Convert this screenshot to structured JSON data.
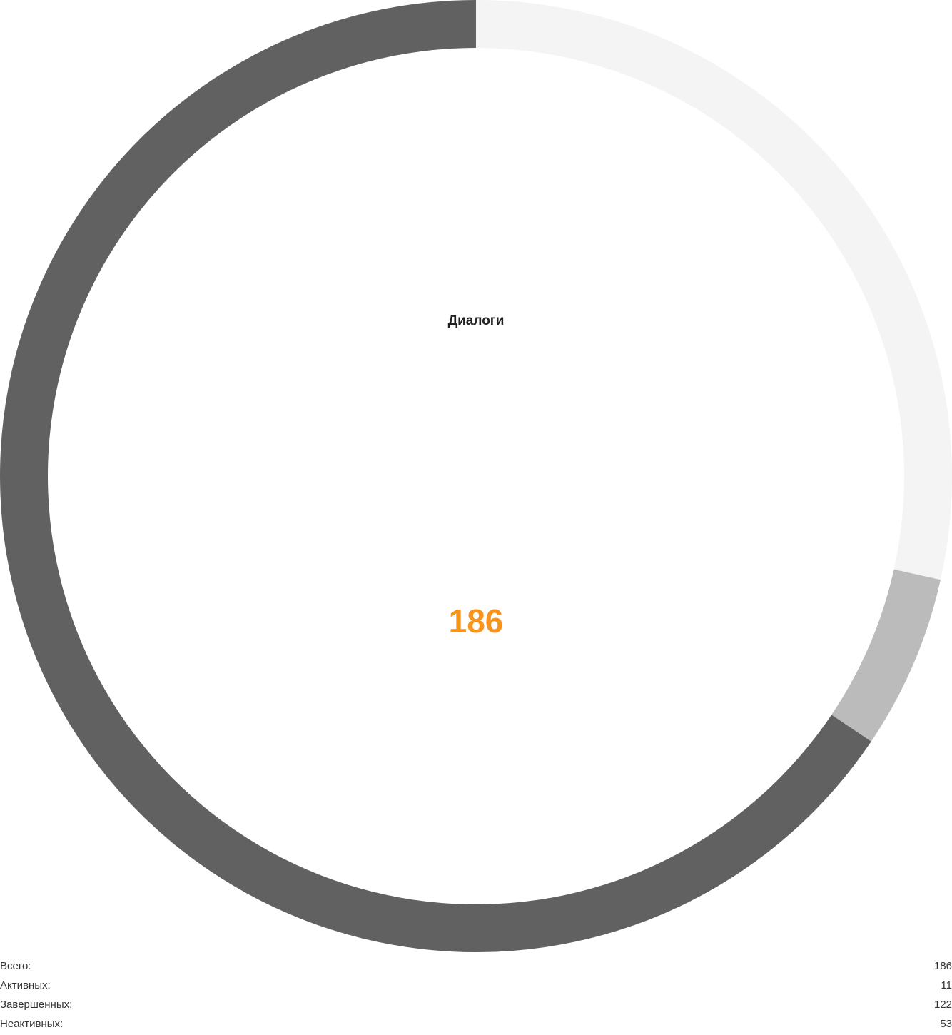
{
  "chart_data": {
    "type": "pie",
    "title": "Диалоги",
    "total": 186,
    "slices": [
      {
        "name": "Неактивных",
        "value": 53,
        "color": "#f4f4f4"
      },
      {
        "name": "Активных",
        "value": 11,
        "color": "#bbbbbb"
      },
      {
        "name": "Завершенных",
        "value": 122,
        "color": "#616161"
      }
    ],
    "start_angle_deg": 0,
    "direction": "clockwise"
  },
  "center": {
    "title": "Диалоги",
    "value": "186",
    "value_color": "#f7941d"
  },
  "legend": {
    "rows": [
      {
        "label": "Всего:",
        "value": "186"
      },
      {
        "label": "Активных:",
        "value": "11"
      },
      {
        "label": "Завершенных:",
        "value": "122"
      },
      {
        "label": "Неактивных:",
        "value": "53"
      }
    ]
  }
}
